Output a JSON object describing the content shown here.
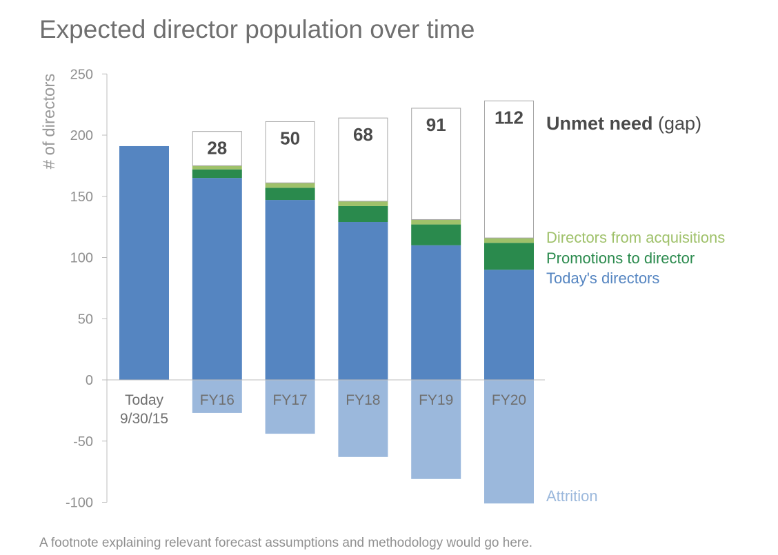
{
  "chart_data": {
    "type": "bar",
    "stacked": true,
    "title": "Expected director population over time",
    "ylabel": "# of directors",
    "xlabel": "",
    "ylim": [
      -100,
      250
    ],
    "yticks": [
      250,
      200,
      150,
      100,
      50,
      0,
      -50,
      -100
    ],
    "categories": [
      {
        "line1": "Today",
        "line2": "9/30/15"
      },
      {
        "line1": "FY16",
        "line2": ""
      },
      {
        "line1": "FY17",
        "line2": ""
      },
      {
        "line1": "FY18",
        "line2": ""
      },
      {
        "line1": "FY19",
        "line2": ""
      },
      {
        "line1": "FY20",
        "line2": ""
      }
    ],
    "series": [
      {
        "name": "Today's directors",
        "color": "#5585c1",
        "values": [
          191,
          165,
          147,
          129,
          110,
          90
        ]
      },
      {
        "name": "Promotions to director",
        "color": "#2a8a4d",
        "values": [
          0,
          7,
          10,
          13,
          17,
          22
        ]
      },
      {
        "name": "Directors from acquisitions",
        "color": "#9fc16a",
        "values": [
          0,
          3,
          4,
          4,
          4,
          4
        ]
      },
      {
        "name": "Unmet need (gap)",
        "color": "#ffffff",
        "values": [
          0,
          28,
          50,
          68,
          91,
          112
        ]
      },
      {
        "name": "Attrition",
        "color": "#9bb8dc",
        "values": [
          0,
          -27,
          -44,
          -63,
          -81,
          -101
        ]
      }
    ],
    "gap_labels": [
      "",
      "28",
      "50",
      "68",
      "91",
      "112"
    ],
    "legend": {
      "gap": {
        "bold_part": "Unmet need",
        "rest": " (gap)",
        "color": "#4a4a4a"
      },
      "acquisitions": {
        "text": "Directors from acquisitions",
        "color": "#9fc16a"
      },
      "promotions": {
        "text": "Promotions to director",
        "color": "#2a8a4d"
      },
      "today": {
        "text": "Today's directors",
        "color": "#5585c1"
      },
      "attrition": {
        "text": "Attrition",
        "color": "#9bb8dc"
      }
    }
  },
  "footnote": "A footnote explaining relevant forecast assumptions and methodology would go here."
}
